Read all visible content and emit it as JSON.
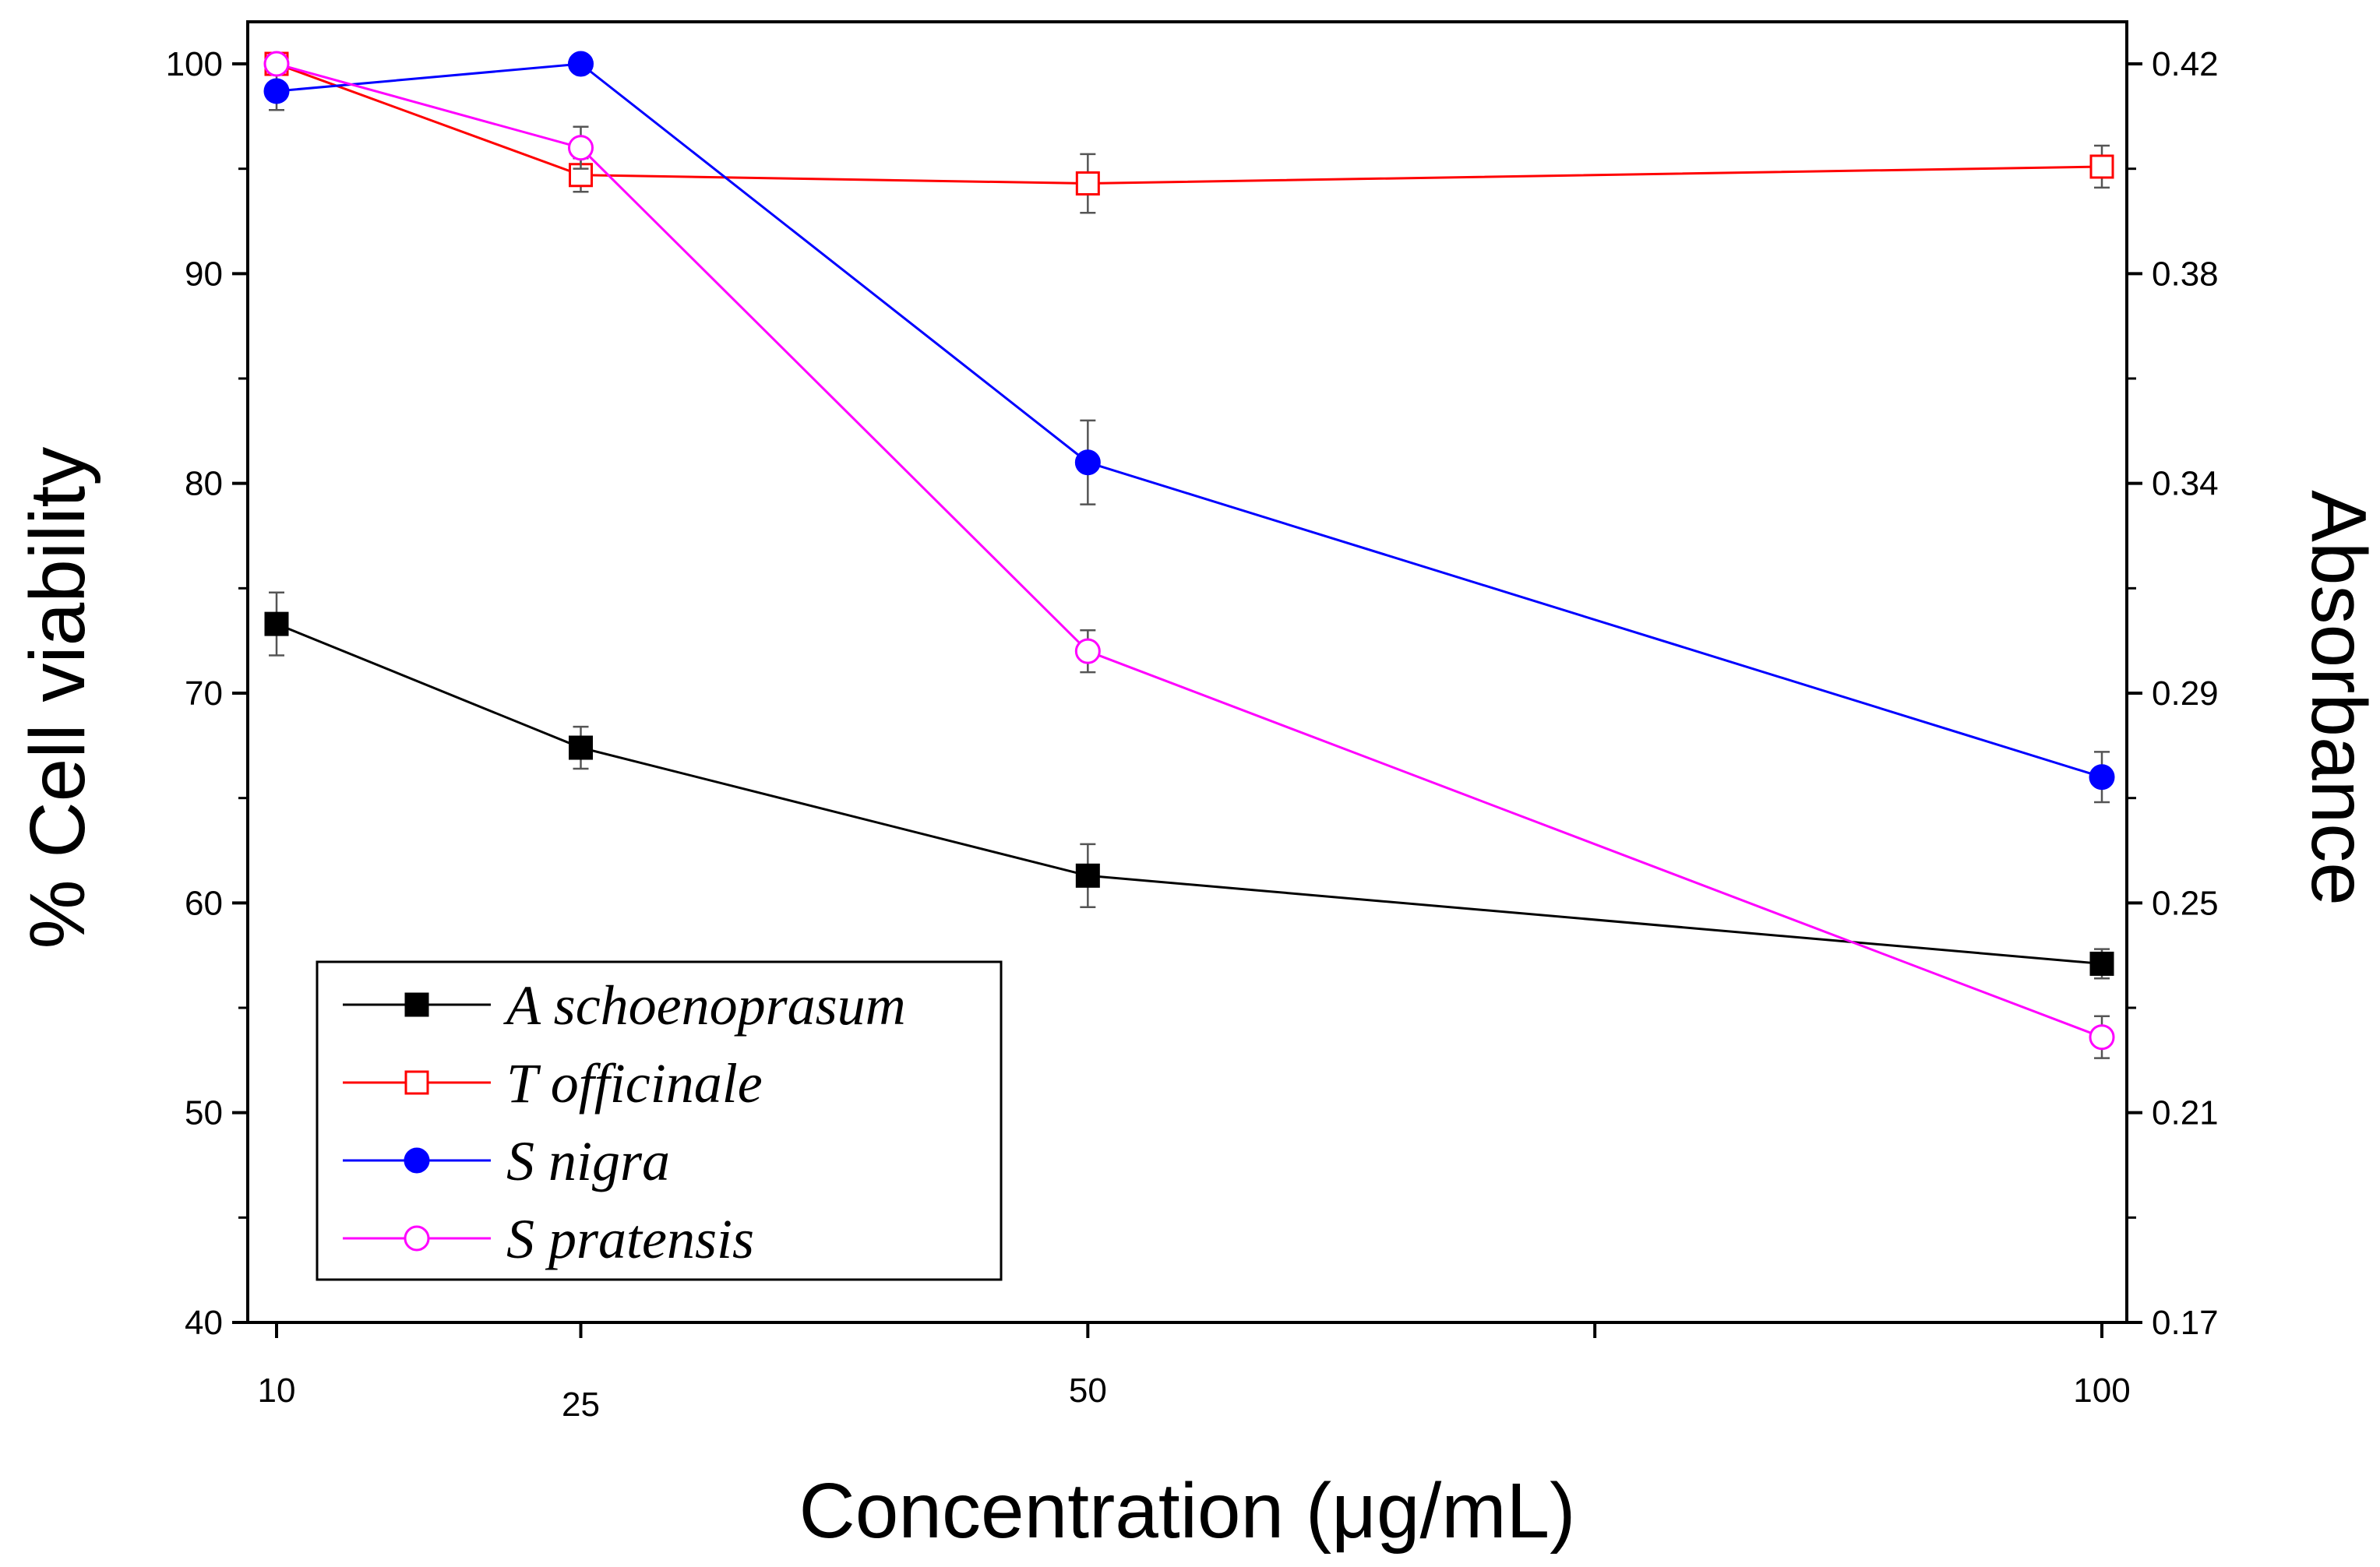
{
  "chart_data": {
    "type": "line",
    "title": "",
    "xlabel": "Concentration (μg/mL)",
    "ylabel": "% Cell viability",
    "ylabel_right": "Absorbance",
    "x": [
      10,
      25,
      50,
      100
    ],
    "xticks": [
      "10",
      "25",
      "50",
      "100"
    ],
    "yticks": [
      "40",
      "50",
      "60",
      "70",
      "80",
      "90",
      "100"
    ],
    "yticks_right": [
      "0.17",
      "0.21",
      "0.25",
      "0.29",
      "0.34",
      "0.38",
      "0.42"
    ],
    "ylim": [
      40,
      102
    ],
    "grid": false,
    "legend_position": "bottom-left",
    "series": [
      {
        "name": "A schoenoprasum",
        "color": "#000000",
        "marker": "square-filled",
        "values": [
          73.3,
          67.4,
          61.3,
          57.1
        ],
        "errors": [
          1.5,
          1.0,
          1.5,
          0.7
        ]
      },
      {
        "name": "T officinale",
        "color": "#ff0000",
        "marker": "square-open",
        "values": [
          100.0,
          94.7,
          94.3,
          95.1
        ],
        "errors": [
          0.3,
          0.8,
          1.4,
          1.0
        ]
      },
      {
        "name": "S nigra",
        "color": "#0000ff",
        "marker": "circle-filled",
        "values": [
          98.7,
          100.0,
          81.0,
          66.0
        ],
        "errors": [
          0.9,
          0.3,
          2.0,
          1.2
        ]
      },
      {
        "name": "S pratensis",
        "color": "#ff00ff",
        "marker": "circle-open",
        "values": [
          100.0,
          96.0,
          72.0,
          53.6
        ],
        "errors": [
          0.3,
          1.0,
          1.0,
          1.0
        ]
      }
    ]
  }
}
